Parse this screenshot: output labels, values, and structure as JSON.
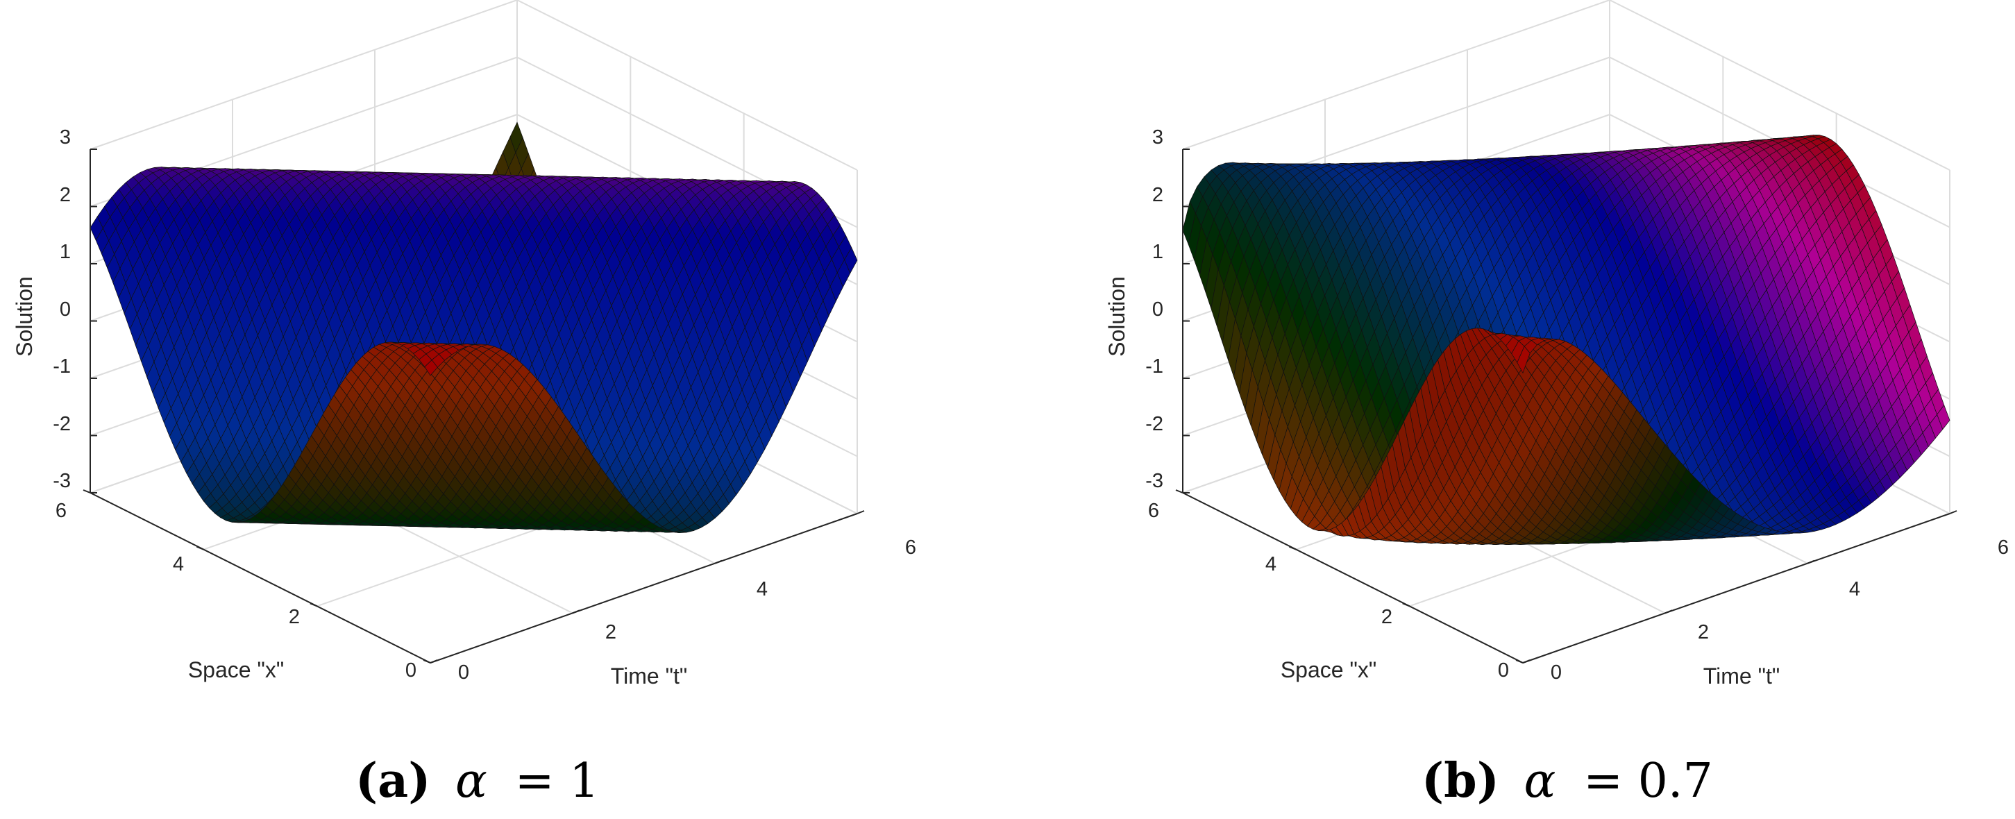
{
  "chart_data": [
    {
      "type": "surface",
      "caption": {
        "label": "(a)",
        "symbol": "α",
        "equals": "= 1"
      },
      "xlabel": "Time \"t\"",
      "ylabel": "Space \"x\"",
      "zlabel": "Solution",
      "xlim": [
        0,
        6
      ],
      "ylim": [
        0,
        6
      ],
      "zlim": [
        -3,
        3
      ],
      "xticks": [
        "0",
        "2",
        "4",
        "6"
      ],
      "yticks": [
        "0",
        "2",
        "4",
        "6"
      ],
      "zticks": [
        "-3",
        "-2",
        "-1",
        "0",
        "1",
        "2",
        "3"
      ],
      "grid": true,
      "alpha": 1,
      "colormap": "hsv"
    },
    {
      "type": "surface",
      "caption": {
        "label": "(b)",
        "symbol": "α",
        "equals": "= 0.7"
      },
      "xlabel": "Time \"t\"",
      "ylabel": "Space \"x\"",
      "zlabel": "Solution",
      "xlim": [
        0,
        6
      ],
      "ylim": [
        0,
        6
      ],
      "zlim": [
        -3,
        3
      ],
      "xticks": [
        "0",
        "2",
        "4",
        "6"
      ],
      "yticks": [
        "0",
        "2",
        "4",
        "6"
      ],
      "zticks": [
        "-3",
        "-2",
        "-1",
        "0",
        "1",
        "2",
        "3"
      ],
      "grid": true,
      "alpha": 0.7,
      "colormap": "hsv"
    }
  ]
}
